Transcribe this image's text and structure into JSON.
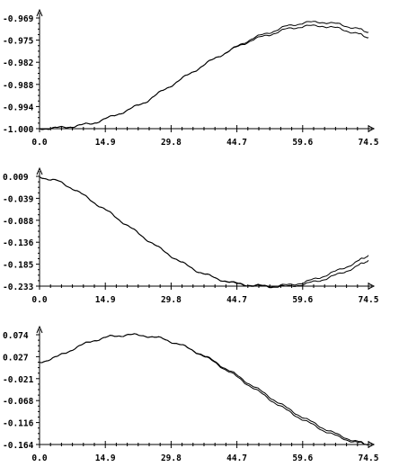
{
  "chart_data": [
    {
      "type": "line",
      "title": "",
      "xlabel": "",
      "ylabel": "",
      "xlim": [
        0.0,
        74.5
      ],
      "ylim": [
        -1.0,
        -0.969
      ],
      "x_ticks": [
        "0.0",
        "14.9",
        "29.8",
        "44.7",
        "59.6",
        "74.5"
      ],
      "y_ticks": [
        "-1.000",
        "-0.994",
        "-0.988",
        "-0.982",
        "-0.975",
        "-0.969"
      ],
      "grid": false,
      "series": [
        {
          "x": [
            0,
            4,
            8,
            12,
            16,
            20,
            24,
            28,
            32,
            36,
            40,
            44,
            48,
            52,
            56,
            60,
            64,
            68,
            72,
            74.5
          ],
          "values": [
            -1.0,
            -0.9998,
            -0.9993,
            -0.9985,
            -0.9968,
            -0.9948,
            -0.9925,
            -0.9893,
            -0.9862,
            -0.9831,
            -0.9801,
            -0.9775,
            -0.9748,
            -0.9731,
            -0.9713,
            -0.9703,
            -0.9701,
            -0.9708,
            -0.972,
            -0.973
          ]
        },
        {
          "x": [
            0,
            4,
            8,
            12,
            16,
            20,
            24,
            28,
            32,
            36,
            40,
            44,
            48,
            52,
            56,
            60,
            64,
            68,
            72,
            74.5
          ],
          "values": [
            -1.0,
            -0.9998,
            -0.9993,
            -0.9985,
            -0.9968,
            -0.9948,
            -0.9925,
            -0.9893,
            -0.9862,
            -0.9831,
            -0.9801,
            -0.9776,
            -0.9752,
            -0.9737,
            -0.9721,
            -0.9713,
            -0.9712,
            -0.972,
            -0.9734,
            -0.9745
          ]
        }
      ]
    },
    {
      "type": "line",
      "title": "",
      "xlabel": "",
      "ylabel": "",
      "xlim": [
        0.0,
        74.5
      ],
      "ylim": [
        -0.233,
        0.009
      ],
      "x_ticks": [
        "0.0",
        "14.9",
        "29.8",
        "44.7",
        "59.6",
        "74.5"
      ],
      "y_ticks": [
        "-0.233",
        "-0.185",
        "-0.136",
        "-0.088",
        "-0.039",
        "0.009"
      ],
      "grid": false,
      "series": [
        {
          "x": [
            0,
            4,
            8,
            12,
            16,
            20,
            24,
            28,
            32,
            36,
            40,
            44,
            48,
            52,
            56,
            60,
            64,
            68,
            72,
            74.5
          ],
          "values": [
            0.008,
            -0.001,
            -0.02,
            -0.046,
            -0.072,
            -0.1,
            -0.128,
            -0.155,
            -0.18,
            -0.201,
            -0.216,
            -0.226,
            -0.231,
            -0.233,
            -0.231,
            -0.225,
            -0.212,
            -0.197,
            -0.179,
            -0.165
          ]
        },
        {
          "x": [
            0,
            4,
            8,
            12,
            16,
            20,
            24,
            28,
            32,
            36,
            40,
            44,
            48,
            52,
            56,
            60,
            64,
            68,
            72,
            74.5
          ],
          "values": [
            0.008,
            -0.001,
            -0.02,
            -0.046,
            -0.072,
            -0.1,
            -0.128,
            -0.155,
            -0.18,
            -0.201,
            -0.216,
            -0.227,
            -0.232,
            -0.234,
            -0.234,
            -0.229,
            -0.219,
            -0.206,
            -0.189,
            -0.176
          ]
        }
      ]
    },
    {
      "type": "line",
      "title": "",
      "xlabel": "",
      "ylabel": "",
      "xlim": [
        0.0,
        74.5
      ],
      "ylim": [
        -0.164,
        0.074
      ],
      "x_ticks": [
        "0.0",
        "14.9",
        "29.8",
        "44.7",
        "59.6",
        "74.5"
      ],
      "y_ticks": [
        "-0.164",
        "-0.116",
        "-0.068",
        "-0.021",
        "0.027",
        "0.074"
      ],
      "grid": false,
      "series": [
        {
          "x": [
            0,
            4,
            8,
            12,
            16,
            20,
            24,
            28,
            32,
            36,
            40,
            44,
            48,
            52,
            56,
            60,
            64,
            68,
            72,
            74.5
          ],
          "values": [
            0.014,
            0.026,
            0.045,
            0.061,
            0.07,
            0.074,
            0.072,
            0.065,
            0.052,
            0.035,
            0.014,
            -0.01,
            -0.035,
            -0.06,
            -0.085,
            -0.107,
            -0.127,
            -0.145,
            -0.158,
            -0.164
          ]
        },
        {
          "x": [
            0,
            4,
            8,
            12,
            16,
            20,
            24,
            28,
            32,
            36,
            40,
            44,
            48,
            52,
            56,
            60,
            64,
            68,
            72,
            74.5
          ],
          "values": [
            0.014,
            0.026,
            0.045,
            0.061,
            0.07,
            0.074,
            0.072,
            0.065,
            0.052,
            0.034,
            0.012,
            -0.013,
            -0.039,
            -0.065,
            -0.09,
            -0.112,
            -0.132,
            -0.149,
            -0.16,
            -0.164
          ]
        }
      ]
    }
  ]
}
